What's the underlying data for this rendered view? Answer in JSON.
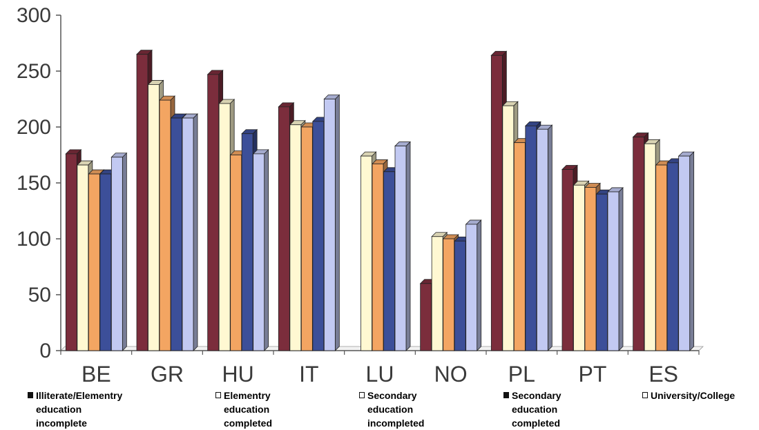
{
  "chart_data": {
    "type": "bar",
    "title": "",
    "xlabel": "",
    "ylabel": "",
    "ylim": [
      0,
      300
    ],
    "yticks": [
      "0",
      "50",
      "100",
      "150",
      "200",
      "250",
      "300"
    ],
    "categories": [
      "BE",
      "GR",
      "HU",
      "IT",
      "LU",
      "NO",
      "PL",
      "PT",
      "ES"
    ],
    "series": [
      {
        "name": "Illiterate/Elementry education incomplete",
        "color": "#7b2d3c",
        "values": [
          176,
          265,
          247,
          218,
          null,
          60,
          264,
          162,
          191
        ]
      },
      {
        "name": "Elementry education completed",
        "color": "#fff8d2",
        "values": [
          166,
          238,
          221,
          202,
          174,
          102,
          219,
          148,
          185
        ]
      },
      {
        "name": "Secondary education incompleted",
        "color": "#f3a562",
        "values": [
          158,
          224,
          175,
          200,
          167,
          100,
          186,
          146,
          166
        ]
      },
      {
        "name": "Secondary education completed",
        "color": "#3c4f99",
        "values": [
          158,
          208,
          194,
          205,
          160,
          98,
          201,
          140,
          168
        ]
      },
      {
        "name": "University/College",
        "color": "#c2c9f2",
        "values": [
          173,
          208,
          176,
          225,
          183,
          113,
          198,
          142,
          174
        ]
      }
    ],
    "legend_position": "bottom",
    "grid": false,
    "style": "3d-bars"
  },
  "legend": {
    "items": [
      {
        "label": "Illiterate/Elementry education\nincomplete",
        "swatch": "#111111"
      },
      {
        "label": "Elementry education\ncompleted",
        "swatch": "#ffffff"
      },
      {
        "label": "Secondary education\nincompleted",
        "swatch": "#ffffff"
      },
      {
        "label": "Secondary education\ncompleted",
        "swatch": "#111111"
      },
      {
        "label": "University/College",
        "swatch": "#ffffff"
      }
    ]
  }
}
